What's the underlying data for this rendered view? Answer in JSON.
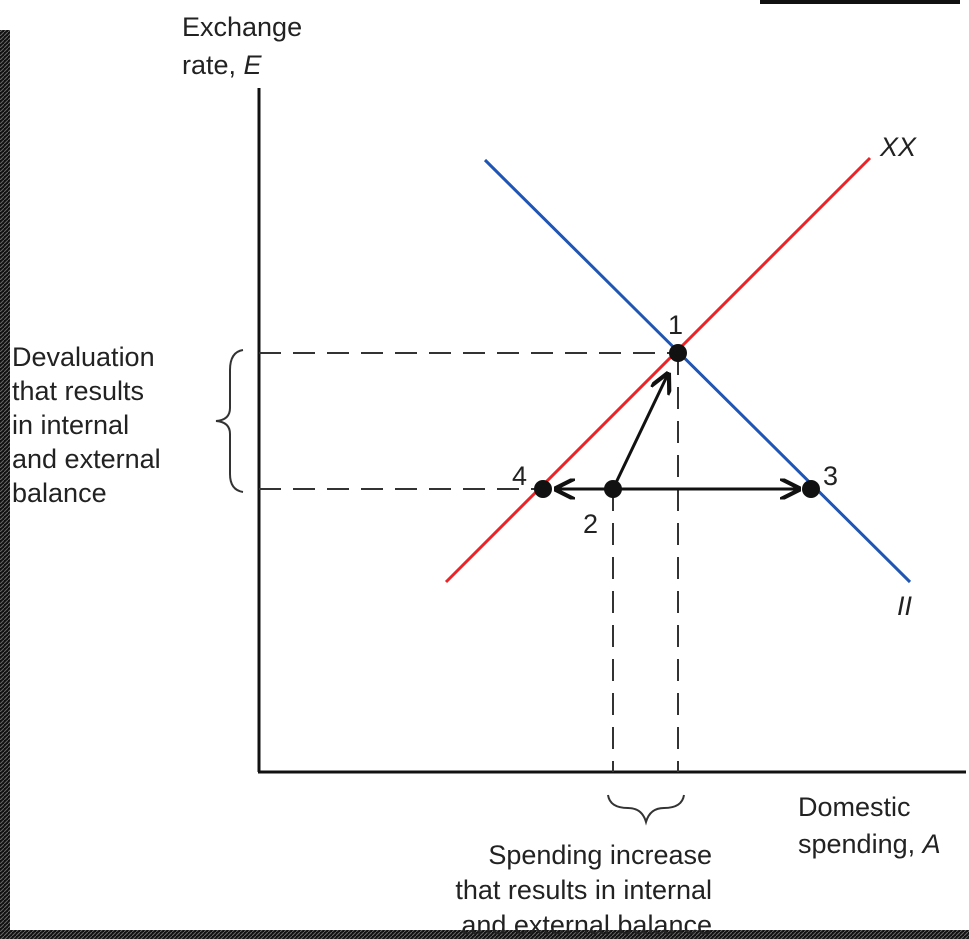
{
  "y_axis": {
    "line1": "Exchange",
    "line2": "rate,",
    "symbol": "E"
  },
  "x_axis": {
    "line1": "Domestic",
    "line2": "spending,",
    "symbol": "A"
  },
  "curves": {
    "xx": "XX",
    "ii": "II"
  },
  "points": [
    "1",
    "2",
    "3",
    "4"
  ],
  "devaluation_note": [
    "Devaluation",
    "that results",
    "in internal",
    "and external",
    "balance"
  ],
  "spending_note": [
    "Spending increase",
    "that results in internal",
    "and external balance"
  ]
}
